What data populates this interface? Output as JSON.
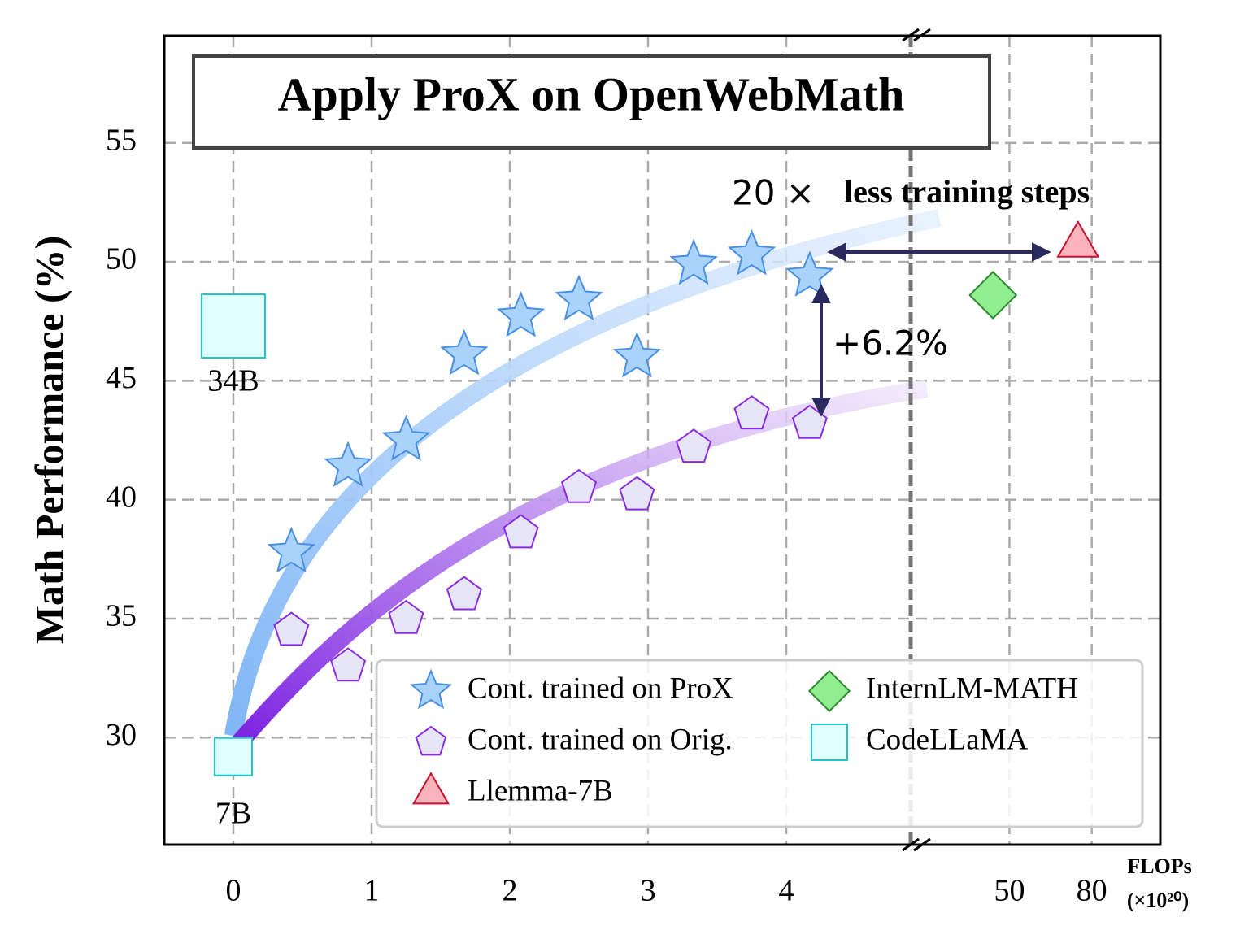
{
  "chart_data": {
    "type": "scatter",
    "title": "Apply ProX on OpenWebMath",
    "ylabel": "Math Performance (%)",
    "xlabel": "FLOPs",
    "xlabel_unit": "(×10²⁰)",
    "xlim": [
      -0.5,
      4.9
    ],
    "xticks": [
      0,
      1,
      2,
      3,
      4
    ],
    "x2lim": [
      14,
      105
    ],
    "x2ticks": [
      50,
      80
    ],
    "ylim": [
      25.5,
      59.5
    ],
    "yticks": [
      30,
      35,
      40,
      45,
      50,
      55
    ],
    "grid": true,
    "legend": "lower right",
    "series": [
      {
        "name": "Cont. trained on ProX",
        "marker": "star",
        "color": "#a9d3fb",
        "edge": "#4a90e2",
        "x": [
          0.42,
          0.83,
          1.25,
          1.67,
          2.08,
          2.5,
          2.92,
          3.33,
          3.75,
          4.17
        ],
        "values": [
          37.8,
          41.4,
          42.5,
          46.1,
          47.7,
          48.4,
          46.0,
          49.9,
          50.3,
          49.4
        ]
      },
      {
        "name": "Cont. trained on Orig.",
        "marker": "pentagon",
        "color": "#e6e4f7",
        "edge": "#8a2be2",
        "x": [
          0.42,
          0.83,
          1.25,
          1.67,
          2.08,
          2.5,
          2.92,
          3.33,
          3.75,
          4.17
        ],
        "values": [
          34.5,
          33.0,
          35.0,
          36.0,
          38.6,
          40.5,
          40.2,
          42.2,
          43.6,
          43.2
        ]
      },
      {
        "name": "Llemma-7B",
        "marker": "triangle",
        "color": "#f9b4bb",
        "edge": "#c8102e",
        "axis": "x2",
        "x": [
          75
        ],
        "values": [
          50.7
        ]
      },
      {
        "name": "InternLM-MATH",
        "marker": "diamond",
        "color": "#90ee90",
        "edge": "#2e8b2e",
        "axis": "x2",
        "x": [
          44
        ],
        "values": [
          48.6
        ]
      },
      {
        "name": "CodeLLaMA",
        "marker": "square",
        "color": "#e0ffff",
        "edge": "#20c5c5",
        "x": [
          0,
          0
        ],
        "values": [
          47.3,
          29.2
        ],
        "point_labels": [
          "34B",
          "7B"
        ]
      }
    ],
    "annotations": [
      "20 ×",
      "less training steps",
      "+6.2%"
    ]
  }
}
